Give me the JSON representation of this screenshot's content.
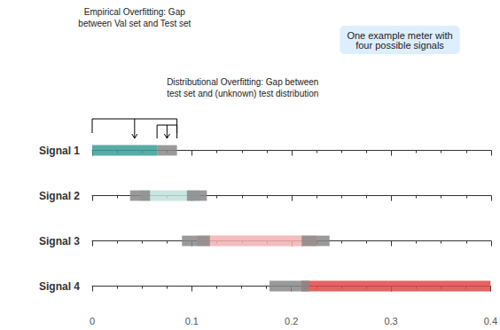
{
  "chart_data": {
    "type": "bar",
    "orientation": "horizontal",
    "categories": [
      "Signal 1",
      "Signal 2",
      "Signal 3",
      "Signal 4"
    ],
    "segments": [
      [
        {
          "start": 0.0,
          "end": 0.065,
          "color": "#3a9e96"
        },
        {
          "start": 0.065,
          "end": 0.085,
          "color": "#888888"
        }
      ],
      [
        {
          "start": 0.048,
          "end": 0.108,
          "color": "#c2e0dc"
        },
        {
          "start": 0.038,
          "end": 0.058,
          "color": "#888888"
        },
        {
          "start": 0.095,
          "end": 0.115,
          "color": "#888888"
        }
      ],
      [
        {
          "start": 0.105,
          "end": 0.225,
          "color": "#f2b0b0"
        },
        {
          "start": 0.09,
          "end": 0.118,
          "color": "#888888"
        },
        {
          "start": 0.21,
          "end": 0.238,
          "color": "#888888"
        }
      ],
      [
        {
          "start": 0.21,
          "end": 0.4,
          "color": "#e04848"
        },
        {
          "start": 0.178,
          "end": 0.218,
          "color": "#888888"
        }
      ]
    ],
    "xlim": [
      0,
      0.4
    ],
    "xticks": [
      0,
      0.1,
      0.2,
      0.3,
      0.4
    ],
    "grid": false,
    "annotations": [
      {
        "text": "One example meter with\nfour possible signals",
        "color": "#ddeeff"
      },
      {
        "text": "Empirical Overfitting: Gap\nbetween Val set and Test set",
        "start": 0.0,
        "end": 0.085
      },
      {
        "text": "Distributional Overfitting: Gap between\ntest set and (unknown) test distribution",
        "start": 0.065,
        "end": 0.085
      }
    ]
  }
}
